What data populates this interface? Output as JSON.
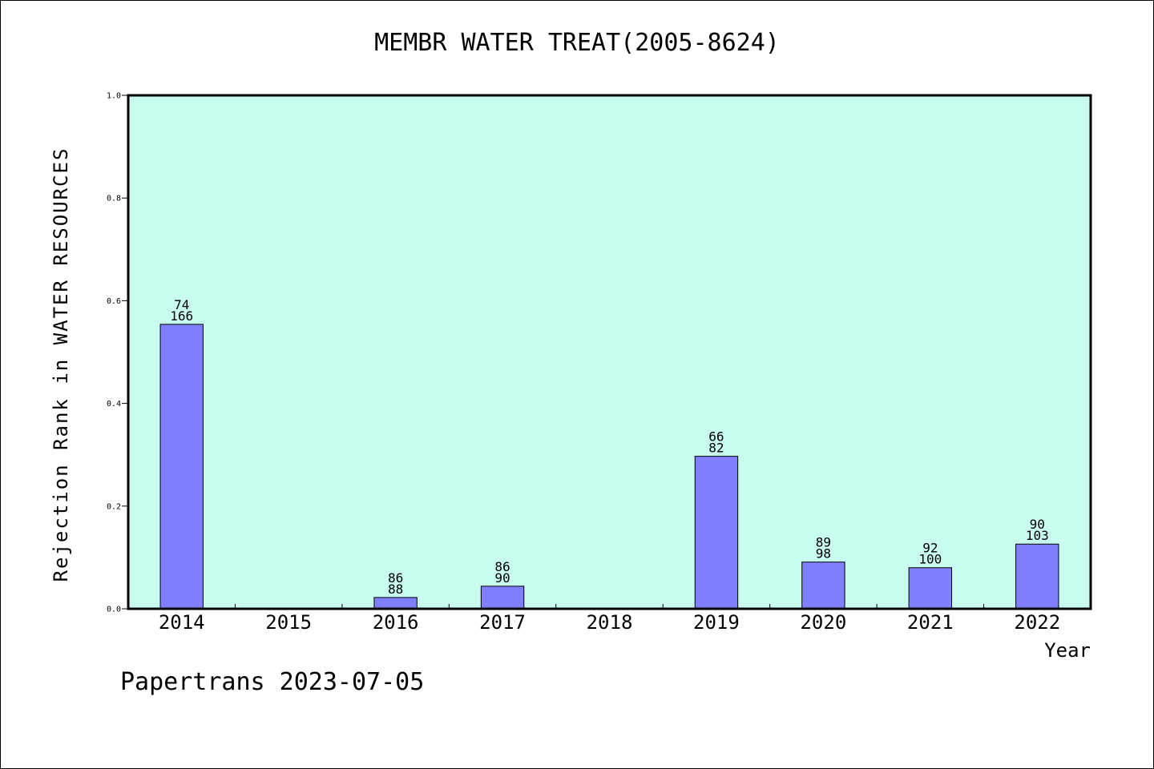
{
  "chart_data": {
    "type": "bar",
    "title": "MEMBR WATER TREAT(2005-8624)",
    "xlabel": "Year",
    "ylabel": "Rejection Rank in WATER RESOURCES",
    "categories": [
      "2014",
      "2015",
      "2016",
      "2017",
      "2018",
      "2019",
      "2020",
      "2021",
      "2022"
    ],
    "values": [
      0.554,
      0,
      0.022,
      0.044,
      0,
      0.297,
      0.091,
      0.08,
      0.126
    ],
    "annotations": [
      [
        "74",
        "166"
      ],
      null,
      [
        "86",
        "88"
      ],
      [
        "86",
        "90"
      ],
      null,
      [
        "66",
        "82"
      ],
      [
        "89",
        "98"
      ],
      [
        "92",
        "100"
      ],
      [
        "90",
        "103"
      ]
    ],
    "ylim": [
      0,
      1.0
    ],
    "yticks": [
      "0.0",
      "0.2",
      "0.4",
      "0.6",
      "0.8",
      "1.0"
    ],
    "grid": false,
    "colors": {
      "plot_background": "#c8fcee",
      "bar_fill": "#8080ff",
      "bar_stroke": "#000000",
      "axis": "#000000"
    }
  },
  "footer": "Papertrans 2023-07-05"
}
